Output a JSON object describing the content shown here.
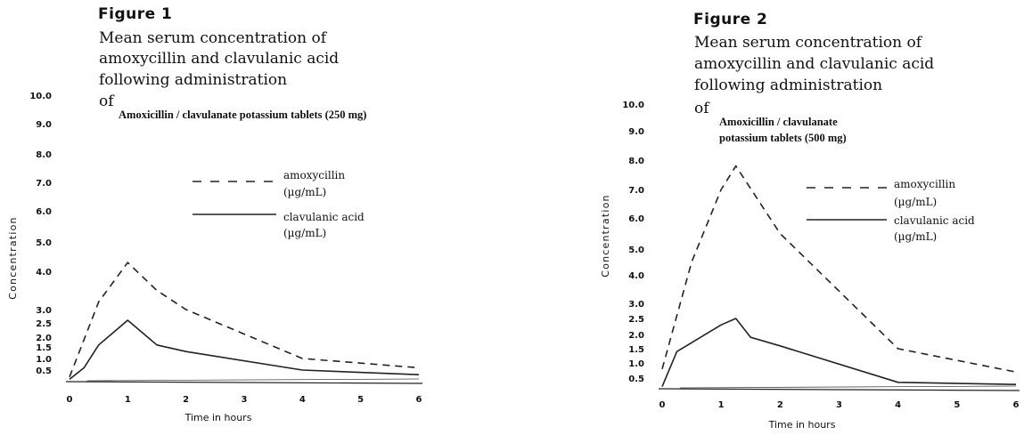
{
  "figures": [
    {
      "heading": "Figure 1",
      "caption_lines": [
        "Mean serum concentration of",
        "amoxycillin and clavulanic acid",
        "following administration",
        "of"
      ],
      "drug_lines": [
        "Amoxicillin / clavulanate potassium tablets (250 mg)"
      ]
    },
    {
      "heading": "Figure 2",
      "caption_lines": [
        "Mean serum concentration of",
        "amoxycillin and clavulanic acid",
        "following administration",
        "of"
      ],
      "drug_lines": [
        "Amoxicillin / clavulanate",
        "potassium tablets (500 mg)"
      ]
    }
  ],
  "chart_data": [
    {
      "type": "line",
      "ylabel": "Concentration",
      "xlabel": "Time in hours",
      "xlim": [
        0,
        6
      ],
      "x_ticks": [
        "0",
        "1",
        "2",
        "3",
        "4",
        "5",
        "6"
      ],
      "y_ticks": [
        "0.5",
        "1.0",
        "1.5",
        "2.0",
        "2.5",
        "3.0",
        "4.0",
        "5.0",
        "6.0",
        "7.0",
        "8.0",
        "9.0",
        "10.0"
      ],
      "legend_position": "center-right",
      "series": [
        {
          "name": "amoxycillin (µg/mL)",
          "style": "dashed",
          "x": [
            0,
            0.5,
            1.0,
            1.5,
            2.0,
            4.0,
            6.0
          ],
          "y": [
            0.2,
            3.2,
            4.3,
            3.5,
            3.0,
            1.0,
            0.6
          ]
        },
        {
          "name": "clavulanic acid (µg/mL)",
          "style": "solid",
          "x": [
            0,
            0.25,
            0.5,
            1.0,
            1.5,
            2.0,
            4.0,
            6.0
          ],
          "y": [
            0.1,
            0.6,
            1.6,
            2.6,
            1.6,
            1.3,
            0.5,
            0.3
          ]
        }
      ]
    },
    {
      "type": "line",
      "ylabel": "Concentration",
      "xlabel": "Time in hours",
      "xlim": [
        0,
        6
      ],
      "x_ticks": [
        "0",
        "1",
        "2",
        "3",
        "4",
        "5",
        "6"
      ],
      "y_ticks": [
        "0.5",
        "1.0",
        "1.5",
        "2.0",
        "2.5",
        "3.0",
        "4.0",
        "5.0",
        "6.0",
        "7.0",
        "8.0",
        "9.0",
        "10.0"
      ],
      "legend_position": "center-right",
      "series": [
        {
          "name": "amoxycillin (µg/mL)",
          "style": "dashed",
          "x": [
            0,
            0.5,
            1.0,
            1.25,
            2.0,
            4.0,
            6.0
          ],
          "y": [
            0.8,
            4.5,
            7.0,
            7.8,
            5.5,
            1.5,
            0.7
          ]
        },
        {
          "name": "clavulanic acid (µg/mL)",
          "style": "solid",
          "x": [
            0,
            0.25,
            1.0,
            1.25,
            1.5,
            2.0,
            4.0,
            6.0
          ],
          "y": [
            0.1,
            1.4,
            2.3,
            2.5,
            1.9,
            1.6,
            0.3,
            0.2
          ]
        }
      ]
    }
  ]
}
